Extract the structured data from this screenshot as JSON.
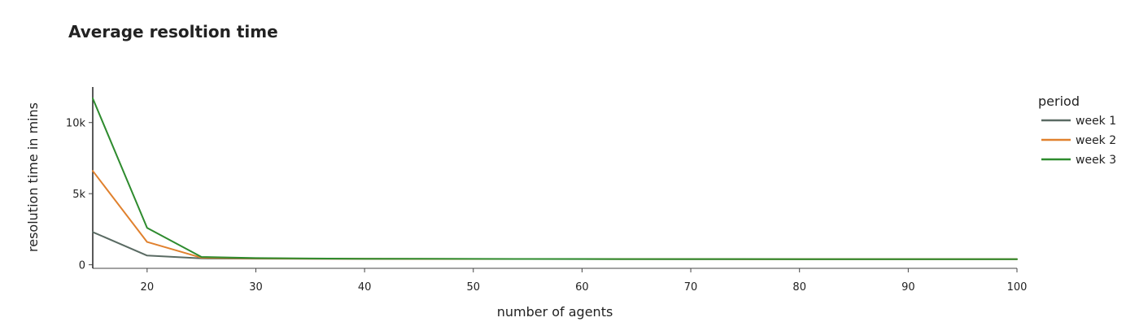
{
  "chart_data": {
    "type": "line",
    "title": "Average resoltion time",
    "xlabel": "number of agents",
    "ylabel": "resolution time in mins",
    "xlim": [
      15,
      100
    ],
    "ylim": [
      -250,
      12500
    ],
    "x_ticks": [
      20,
      30,
      40,
      50,
      60,
      70,
      80,
      90,
      100
    ],
    "x_tick_labels": [
      "20",
      "30",
      "40",
      "50",
      "60",
      "70",
      "80",
      "90",
      "100"
    ],
    "y_ticks": [
      0,
      5000,
      10000
    ],
    "y_tick_labels": [
      "0",
      "5k",
      "10k"
    ],
    "legend_title": "period",
    "legend_position": "right",
    "grid": false,
    "x": [
      15,
      20,
      25,
      30,
      35,
      40,
      45,
      50,
      55,
      60,
      65,
      70,
      75,
      80,
      85,
      90,
      95,
      100
    ],
    "series": [
      {
        "name": "week 1",
        "color": "#5a6b63",
        "values": [
          2300,
          650,
          450,
          430,
          420,
          415,
          410,
          408,
          405,
          403,
          400,
          398,
          396,
          395,
          394,
          393,
          392,
          392
        ]
      },
      {
        "name": "week 2",
        "color": "#e0812e",
        "values": [
          6600,
          1600,
          500,
          450,
          430,
          420,
          415,
          410,
          407,
          405,
          402,
          400,
          398,
          396,
          395,
          394,
          393,
          393
        ]
      },
      {
        "name": "week 3",
        "color": "#2e8b2e",
        "values": [
          11700,
          2600,
          550,
          470,
          440,
          425,
          418,
          413,
          409,
          406,
          403,
          401,
          399,
          397,
          396,
          395,
          394,
          394
        ]
      }
    ]
  }
}
